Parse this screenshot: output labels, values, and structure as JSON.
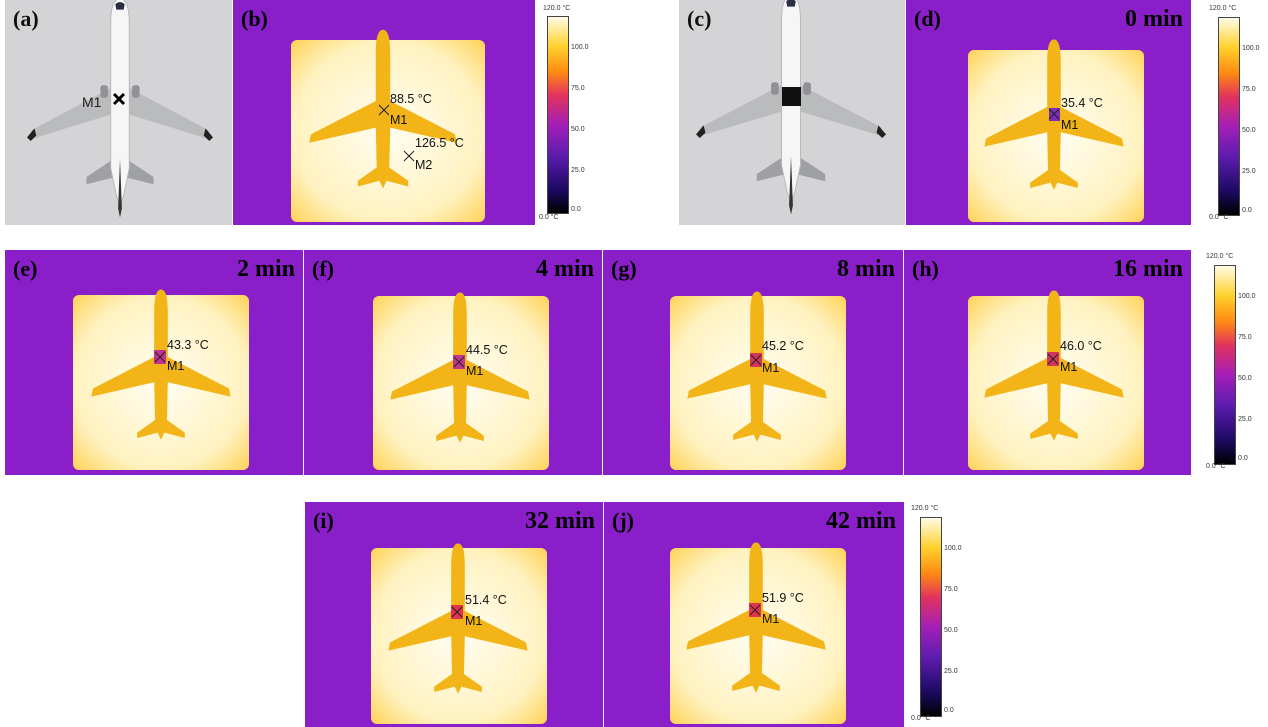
{
  "colors": {
    "thermal_bg": "#8a1fc9",
    "hot_plate": "#fff4c4",
    "plane_yellow": "#f2b417",
    "photo_bg": "#d4d4d6",
    "colormap": [
      "#000000",
      "#1c0a62",
      "#5f1cb0",
      "#a41fb8",
      "#e2325d",
      "#ff8a12",
      "#ffd12c",
      "#fffbe6"
    ]
  },
  "colorbar": {
    "max_label": "120.0 °C",
    "min_label": "0.0 °C",
    "ticks": [
      "100.0",
      "75.0",
      "50.0",
      "25.0",
      "0.0"
    ]
  },
  "panels": {
    "a": {
      "label": "(a)",
      "marker": "M1"
    },
    "b": {
      "label": "(b)",
      "m1_temp": "88.5 °C",
      "m1": "M1",
      "m2_temp": "126.5 °C",
      "m2": "M2"
    },
    "c": {
      "label": "(c)"
    },
    "d": {
      "label": "(d)",
      "time": "0 min",
      "temp": "35.4 °C",
      "marker": "M1"
    },
    "e": {
      "label": "(e)",
      "time": "2 min",
      "temp": "43.3 °C",
      "marker": "M1"
    },
    "f": {
      "label": "(f)",
      "time": "4 min",
      "temp": "44.5 °C",
      "marker": "M1"
    },
    "g": {
      "label": "(g)",
      "time": "8 min",
      "temp": "45.2 °C",
      "marker": "M1"
    },
    "h": {
      "label": "(h)",
      "time": "16 min",
      "temp": "46.0 °C",
      "marker": "M1"
    },
    "i": {
      "label": "(i)",
      "time": "32 min",
      "temp": "51.4 °C",
      "marker": "M1"
    },
    "j": {
      "label": "(j)",
      "time": "42 min",
      "temp": "51.9 °C",
      "marker": "M1"
    }
  }
}
